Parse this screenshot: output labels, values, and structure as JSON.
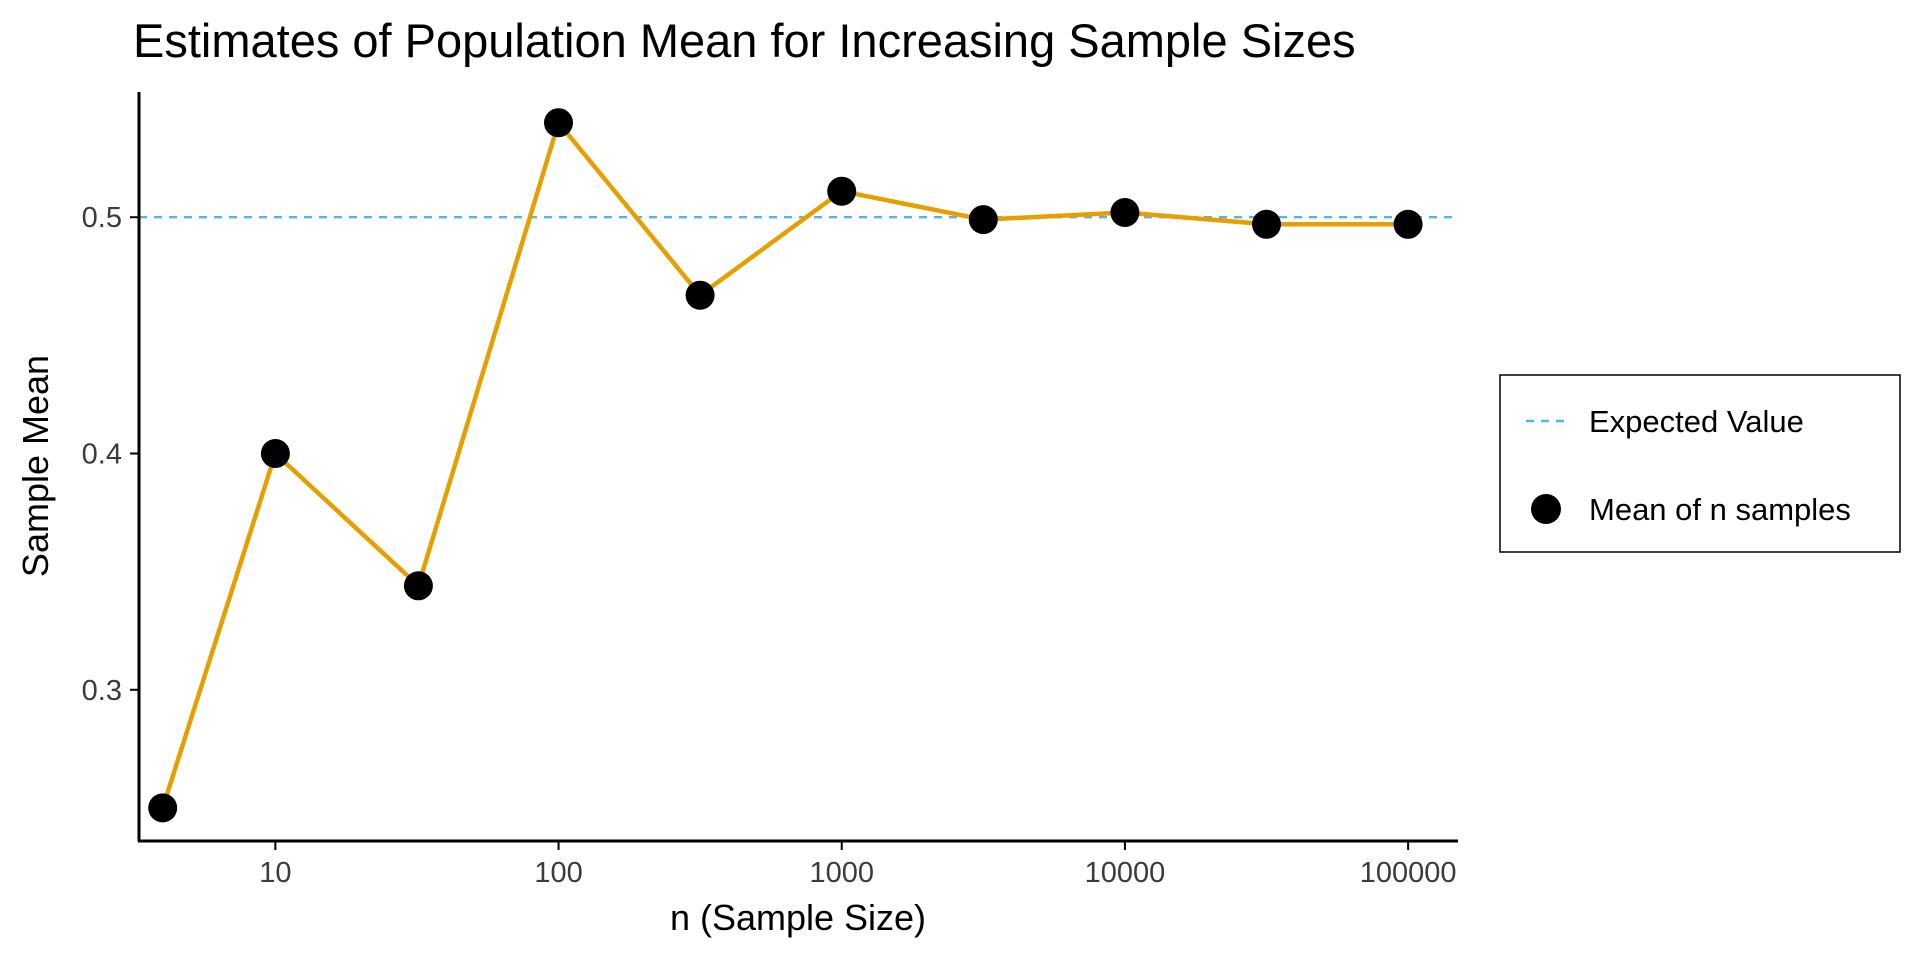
{
  "chart_data": {
    "type": "line",
    "title": "Estimates of Population Mean for Increasing Sample Sizes",
    "xlabel": "n (Sample Size)",
    "ylabel": "Sample Mean",
    "x_scale": "log10",
    "xlim": [
      3.3,
      150000
    ],
    "ylim": [
      0.236,
      0.553
    ],
    "x_ticks": [
      10,
      100,
      1000,
      10000,
      100000
    ],
    "x_tick_labels": [
      "10",
      "100",
      "1000",
      "10000",
      "100000"
    ],
    "y_ticks": [
      0.3,
      0.4,
      0.5
    ],
    "y_tick_labels": [
      "0.3",
      "0.4",
      "0.5"
    ],
    "grid": false,
    "legend_position": "right",
    "series": [
      {
        "name": "Mean of n samples",
        "x": [
          4,
          10,
          32,
          100,
          316,
          1000,
          3162,
          10000,
          31623,
          100000
        ],
        "y": [
          0.25,
          0.4,
          0.344,
          0.54,
          0.467,
          0.511,
          0.499,
          0.502,
          0.497,
          0.497
        ],
        "line_color": "#E69F00",
        "marker_color": "#000000"
      }
    ],
    "reference_line": {
      "name": "Expected Value",
      "y": 0.5,
      "style": "dashed",
      "color": "#56B4E9"
    }
  }
}
